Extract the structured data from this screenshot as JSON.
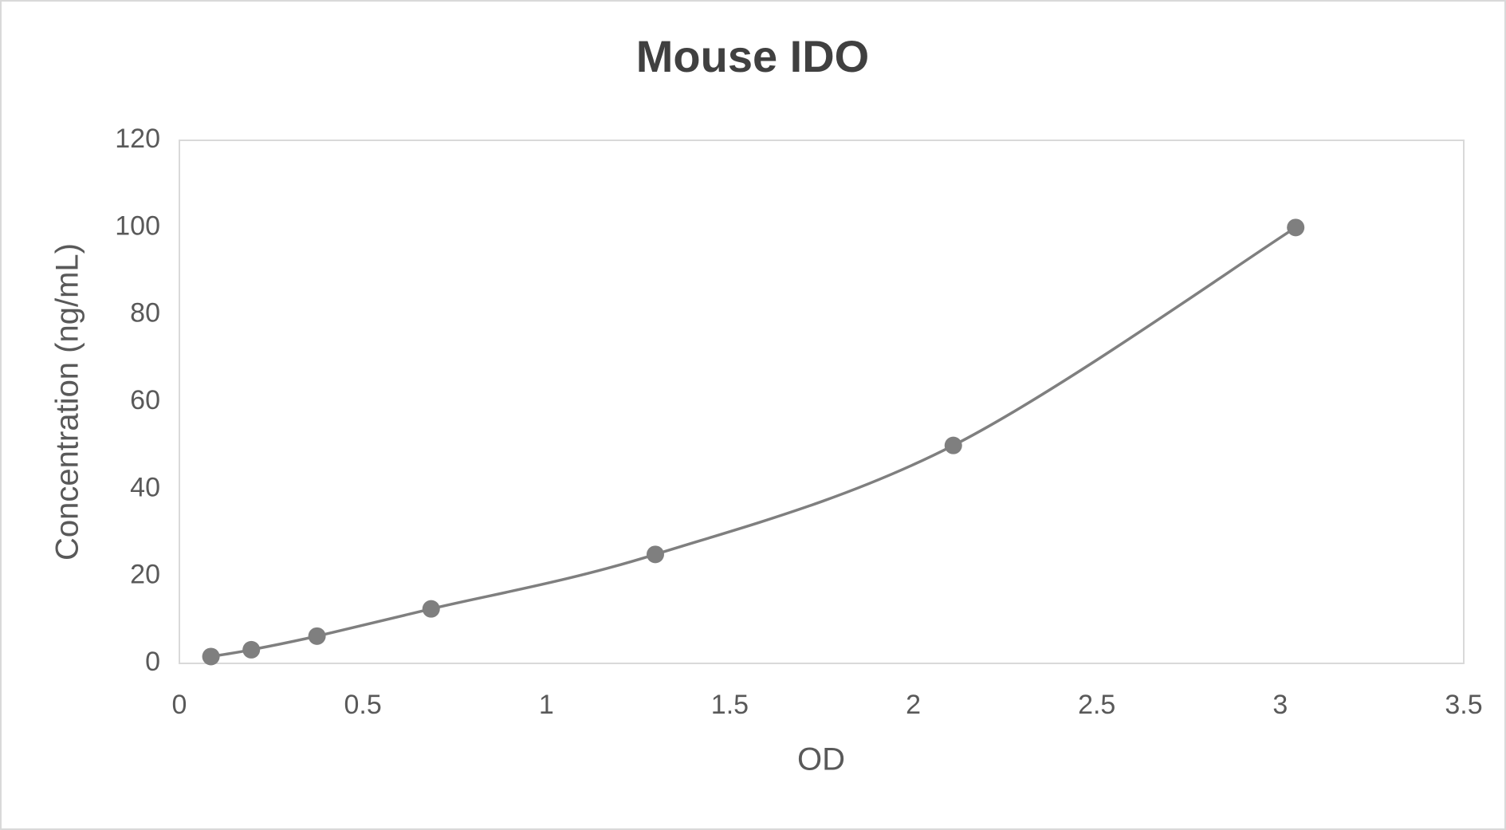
{
  "chart_data": {
    "type": "line",
    "title": "Mouse IDO",
    "x_label": "OD",
    "y_label": "Concentration (ng/mL)",
    "x": [
      0.086,
      0.196,
      0.375,
      0.686,
      1.297,
      2.109,
      3.042
    ],
    "series": [
      {
        "name": "Mouse IDO",
        "color": "#7f7f7f",
        "values": [
          1.5625,
          3.125,
          6.25,
          12.5,
          25,
          50,
          100
        ]
      }
    ],
    "xlim": [
      0,
      3.5
    ],
    "xticks": [
      0,
      0.5,
      1,
      1.5,
      2,
      2.5,
      3,
      3.5
    ],
    "ylim": [
      0,
      120
    ],
    "yticks": [
      0,
      20,
      40,
      60,
      80,
      100,
      120
    ],
    "grid": false,
    "smooth": true,
    "markers": true
  }
}
